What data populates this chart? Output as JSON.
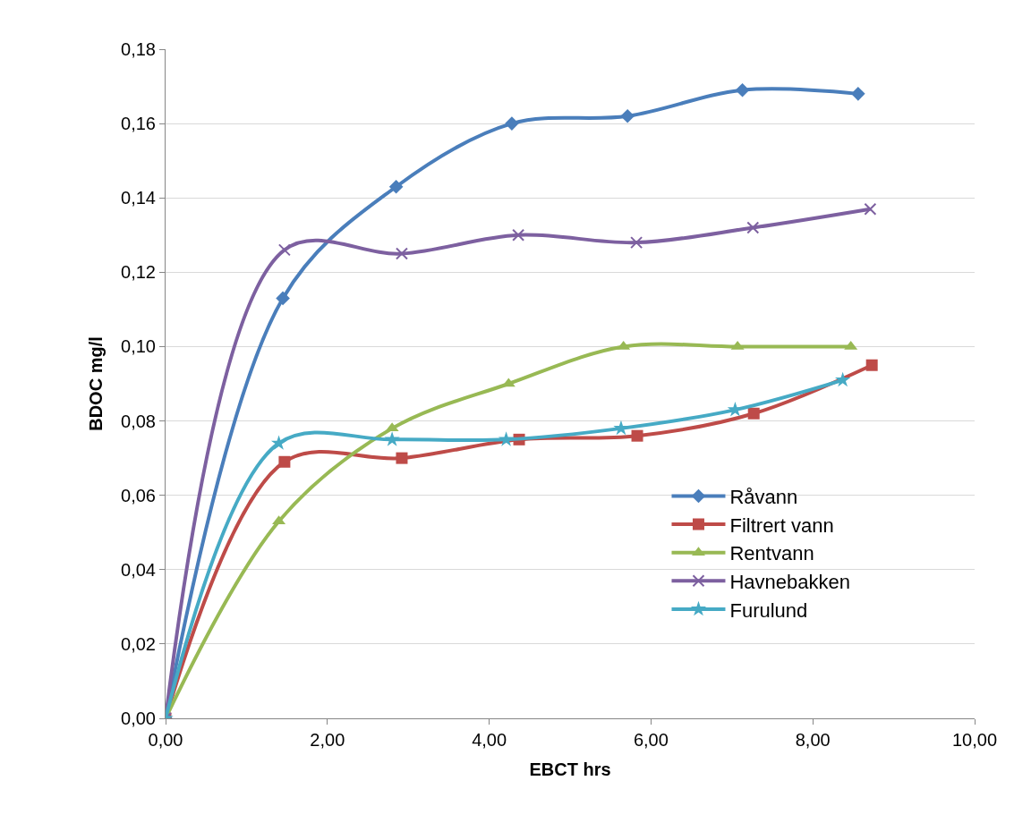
{
  "chart_data": {
    "type": "line",
    "xlabel": "EBCT hrs",
    "ylabel": "BDOC mg/l",
    "xlim": [
      0,
      10
    ],
    "ylim": [
      0,
      0.18
    ],
    "xticks": [
      {
        "value": 0,
        "label": "0,00"
      },
      {
        "value": 2,
        "label": "2,00"
      },
      {
        "value": 4,
        "label": "4,00"
      },
      {
        "value": 6,
        "label": "6,00"
      },
      {
        "value": 8,
        "label": "8,00"
      },
      {
        "value": 10,
        "label": "10,00"
      }
    ],
    "yticks": [
      {
        "value": 0,
        "label": "0,00"
      },
      {
        "value": 0.02,
        "label": "0,02"
      },
      {
        "value": 0.04,
        "label": "0,04"
      },
      {
        "value": 0.06,
        "label": "0,06"
      },
      {
        "value": 0.08,
        "label": "0,08"
      },
      {
        "value": 0.1,
        "label": "0,10"
      },
      {
        "value": 0.12,
        "label": "0,12"
      },
      {
        "value": 0.14,
        "label": "0,14"
      },
      {
        "value": 0.16,
        "label": "0,16"
      },
      {
        "value": 0.18,
        "label": "0,18"
      }
    ],
    "grid": "y",
    "legend": "bottom right",
    "series": [
      {
        "name": "Råvann",
        "color": "#4a7ebb",
        "marker": "diamond",
        "x": [
          0,
          1.45,
          2.85,
          4.28,
          5.71,
          7.13,
          8.56
        ],
        "values": [
          0,
          0.113,
          0.143,
          0.16,
          0.162,
          0.169,
          0.168
        ]
      },
      {
        "name": "Filtrert vann",
        "color": "#be4b48",
        "marker": "square",
        "x": [
          0,
          1.47,
          2.92,
          4.37,
          5.83,
          7.27,
          8.73
        ],
        "values": [
          0,
          0.069,
          0.07,
          0.075,
          0.076,
          0.082,
          0.095
        ]
      },
      {
        "name": "Rentvann",
        "color": "#98b954",
        "marker": "triangle",
        "x": [
          0,
          1.4,
          2.8,
          4.24,
          5.66,
          7.07,
          8.47
        ],
        "values": [
          0,
          0.053,
          0.078,
          0.09,
          0.1,
          0.1,
          0.1
        ]
      },
      {
        "name": "Havnebakken",
        "color": "#7d60a0",
        "marker": "cross",
        "x": [
          0,
          1.47,
          2.92,
          4.36,
          5.82,
          7.26,
          8.71
        ],
        "values": [
          0,
          0.126,
          0.125,
          0.13,
          0.128,
          0.132,
          0.137
        ]
      },
      {
        "name": "Furulund",
        "color": "#46aac5",
        "marker": "star",
        "x": [
          0,
          1.4,
          2.8,
          4.21,
          5.63,
          7.04,
          8.37
        ],
        "values": [
          0,
          0.074,
          0.075,
          0.075,
          0.078,
          0.083,
          0.091
        ]
      }
    ]
  }
}
